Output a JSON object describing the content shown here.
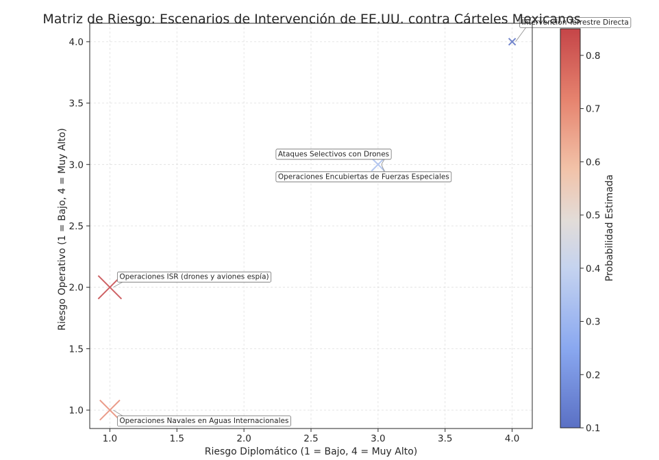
{
  "chart_data": {
    "type": "scatter",
    "title": "Matriz de Riesgo: Escenarios de Intervención de EE.UU. contra Cárteles Mexicanos",
    "xlabel": "Riesgo Diplomático (1 = Bajo, 4 = Muy Alto)",
    "ylabel": "Riesgo Operativo (1 = Bajo, 4 = Muy Alto)",
    "xlim": [
      0.85,
      4.15
    ],
    "ylim": [
      0.85,
      4.15
    ],
    "x_ticks": [
      "1.0",
      "1.5",
      "2.0",
      "2.5",
      "3.0",
      "3.5",
      "4.0"
    ],
    "y_ticks": [
      "1.0",
      "1.5",
      "2.0",
      "2.5",
      "3.0",
      "3.5",
      "4.0"
    ],
    "grid": true,
    "colorbar": {
      "label": "Probabilidad Estimada",
      "range": [
        0.1,
        0.85
      ],
      "ticks": [
        "0.1",
        "0.2",
        "0.3",
        "0.4",
        "0.5",
        "0.6",
        "0.7",
        "0.8"
      ],
      "colormap": "coolwarm"
    },
    "points": [
      {
        "label": "Operaciones ISR (drones y aviones espía)",
        "x": 1.0,
        "y": 2.0,
        "probability": 0.85
      },
      {
        "label": "Operaciones Navales en Aguas Internacionales",
        "x": 1.0,
        "y": 1.0,
        "probability": 0.7
      },
      {
        "label": "Ataques Selectivos con Drones",
        "x": 3.0,
        "y": 3.0,
        "probability": 0.4
      },
      {
        "label": "Operaciones Encubiertas de Fuerzas Especiales",
        "x": 3.0,
        "y": 3.0,
        "probability": 0.35
      },
      {
        "label": "Intervención Terrestre Directa",
        "x": 4.0,
        "y": 4.0,
        "probability": 0.1
      }
    ],
    "marker": "x"
  }
}
